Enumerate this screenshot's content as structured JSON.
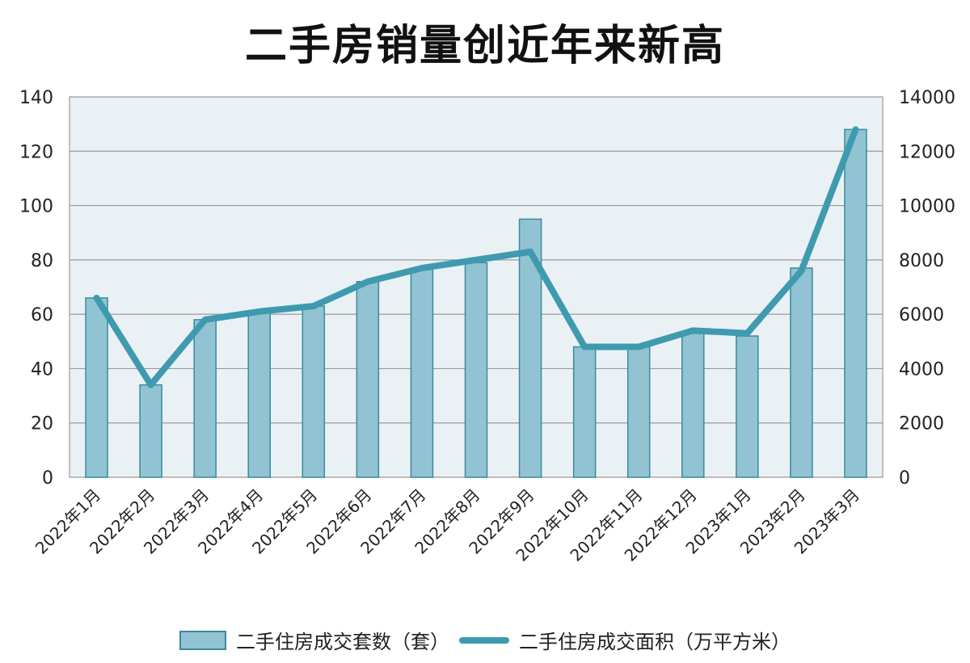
{
  "title": "二手房销量创近年来新高",
  "legend": {
    "bar_label": "二手住房成交套数（套）",
    "line_label": "二手住房成交面积（万平方米）"
  },
  "colors": {
    "bar_fill": "#92c3d3",
    "bar_stroke": "#3a8aa0",
    "line": "#3f9aaf",
    "plot_bg": "#e9f1f5",
    "grid": "#9a9a9a"
  },
  "chart_data": {
    "type": "bar",
    "title": "二手房销量创近年来新高",
    "categories": [
      "2022年1月",
      "2022年2月",
      "2022年3月",
      "2022年4月",
      "2022年5月",
      "2022年6月",
      "2022年7月",
      "2022年8月",
      "2022年9月",
      "2022年10月",
      "2022年11月",
      "2022年12月",
      "2023年1月",
      "2023年2月",
      "2023年3月"
    ],
    "series": [
      {
        "name": "二手住房成交套数（套）",
        "type": "bar",
        "axis": "left",
        "values": [
          66,
          34,
          58,
          61,
          63,
          72,
          77,
          79,
          95,
          48,
          48,
          53,
          52,
          77,
          128
        ]
      },
      {
        "name": "二手住房成交面积（万平方米）",
        "type": "line",
        "axis": "right",
        "values": [
          6600,
          3400,
          5800,
          6100,
          6300,
          7200,
          7700,
          8000,
          8300,
          4800,
          4800,
          5400,
          5300,
          7600,
          12800
        ]
      }
    ],
    "ylim_left": [
      0,
      140
    ],
    "yticks_left": [
      0,
      20,
      40,
      60,
      80,
      100,
      120,
      140
    ],
    "ylim_right": [
      0,
      14000
    ],
    "yticks_right": [
      0,
      2000,
      4000,
      6000,
      8000,
      10000,
      12000,
      14000
    ],
    "grid": true,
    "legend_position": "bottom"
  }
}
